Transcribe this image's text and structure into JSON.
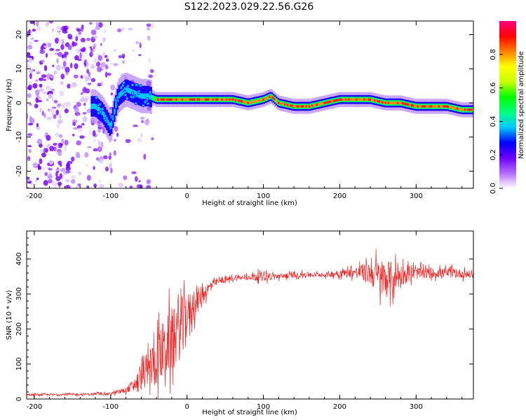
{
  "figure_title": "S122.2023.029.22.56.G26",
  "chart_data": [
    {
      "type": "heatmap",
      "title": "",
      "xlabel": "Height of straight line (km)",
      "ylabel": "Frequency (Hz)",
      "xlim": [
        -210,
        375
      ],
      "ylim": [
        -25,
        24
      ],
      "xticks": [
        -200,
        -100,
        0,
        100,
        200,
        300
      ],
      "yticks": [
        -20,
        -10,
        0,
        10,
        20
      ],
      "colorbar": {
        "label": "Normalized spectral amplitude",
        "range": [
          0,
          1
        ],
        "ticks": [
          0.0,
          0.2,
          0.4,
          0.6,
          0.8
        ],
        "colors": [
          "#ffffff",
          "#b36bff",
          "#6b00ff",
          "#0000ff",
          "#00c8ff",
          "#00ff80",
          "#00ff00",
          "#c8ff00",
          "#ffff00",
          "#ff8000",
          "#ff0000",
          "#ff0080"
        ]
      },
      "ridge": {
        "description": "Doppler frequency ridge vs height",
        "x": [
          -120,
          -110,
          -100,
          -90,
          -80,
          -70,
          -60,
          -50,
          -40,
          -20,
          0,
          20,
          40,
          60,
          80,
          100,
          110,
          120,
          140,
          160,
          180,
          200,
          220,
          240,
          260,
          280,
          300,
          320,
          340,
          360,
          375
        ],
        "y": [
          -1,
          -3,
          -7,
          2,
          4,
          3,
          2,
          2,
          1,
          1,
          1,
          1,
          1,
          1,
          0,
          1,
          2,
          0,
          -1,
          -1,
          0,
          1,
          1,
          1,
          0,
          0,
          -1,
          -1,
          -1,
          -2,
          -2
        ]
      },
      "noise_region_x": [
        -210,
        -45
      ]
    },
    {
      "type": "line",
      "title": "",
      "xlabel": "Height of straight line (km)",
      "ylabel": "SNR (10 * v/v)",
      "xlim": [
        -210,
        375
      ],
      "ylim": [
        0,
        480
      ],
      "xticks": [
        -200,
        -100,
        0,
        100,
        200,
        300
      ],
      "yticks": [
        0,
        100,
        200,
        300,
        400
      ],
      "series_color": "#ee2222",
      "envelope": {
        "x": [
          -210,
          -150,
          -100,
          -80,
          -70,
          -60,
          -50,
          -40,
          -30,
          -20,
          -10,
          0,
          10,
          20,
          30,
          40,
          60,
          80,
          100,
          120,
          150,
          180,
          200,
          220,
          240,
          250,
          260,
          270,
          280,
          300,
          320,
          340,
          360,
          375
        ],
        "mean": [
          12,
          13,
          15,
          25,
          40,
          60,
          90,
          110,
          140,
          170,
          200,
          240,
          270,
          300,
          320,
          335,
          345,
          348,
          352,
          350,
          355,
          355,
          360,
          362,
          360,
          350,
          345,
          345,
          355,
          360,
          360,
          360,
          358,
          355
        ],
        "spread": [
          4,
          4,
          5,
          10,
          25,
          50,
          80,
          100,
          120,
          130,
          130,
          90,
          60,
          40,
          20,
          12,
          10,
          10,
          20,
          12,
          10,
          10,
          15,
          20,
          50,
          70,
          80,
          65,
          45,
          25,
          20,
          20,
          18,
          15
        ]
      }
    }
  ]
}
